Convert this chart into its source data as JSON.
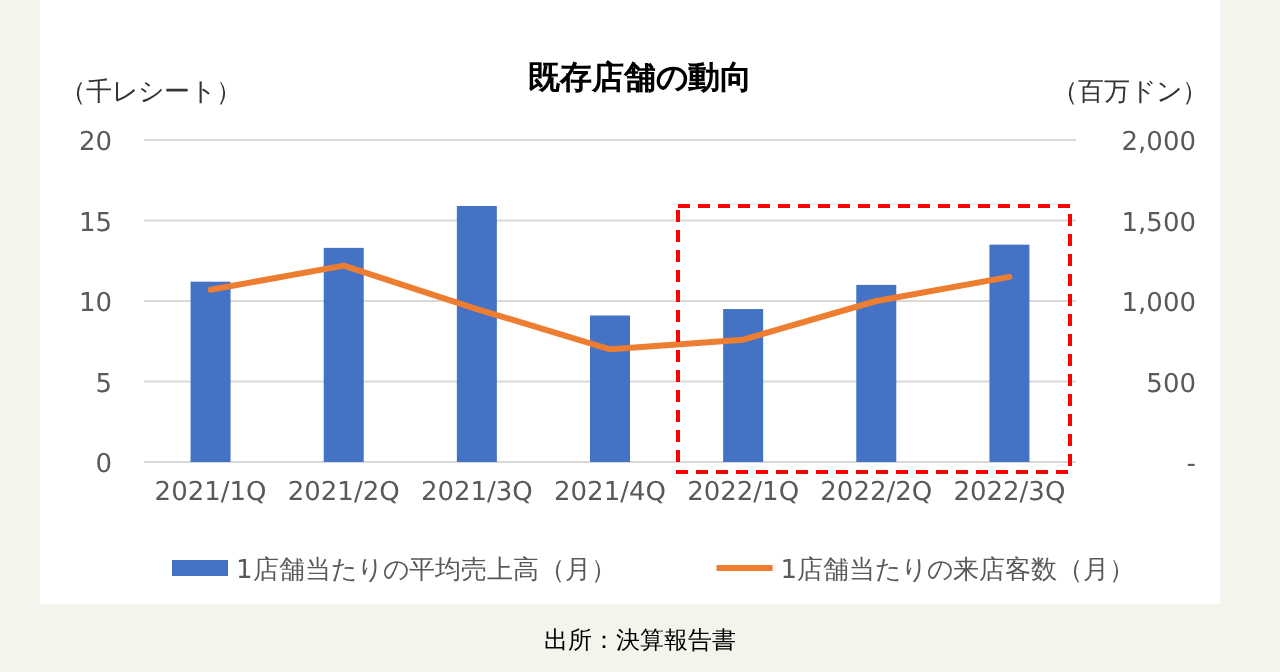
{
  "chart_data": {
    "type": "bar",
    "title": "既存店舗の動向",
    "ylabel": "（千レシート）",
    "y2label": "（百万ドン）",
    "categories": [
      "2021/1Q",
      "2021/2Q",
      "2021/3Q",
      "2021/4Q",
      "2022/1Q",
      "2022/2Q",
      "2022/3Q"
    ],
    "series": [
      {
        "name": "1店舗当たりの平均売上高（月）",
        "axis": "y2",
        "color": "#4472c4",
        "values": [
          1120,
          1330,
          1590,
          910,
          950,
          1100,
          1350
        ]
      },
      {
        "name": "1店舗当たりの来店客数（月）",
        "type": "line",
        "axis": "y",
        "color": "#ed7d31",
        "values": [
          10.7,
          12.2,
          9.5,
          7.0,
          7.6,
          10.0,
          11.5
        ]
      }
    ],
    "ylim": [
      0,
      20
    ],
    "yticks": [
      0,
      5,
      10,
      15,
      20
    ],
    "y2lim": [
      0,
      2000
    ],
    "y2ticks": [
      {
        "value": 0,
        "label": "-"
      },
      500,
      {
        "value": 1000,
        "label": "1,000"
      },
      {
        "value": 1500,
        "label": "1,500"
      },
      {
        "value": 2000,
        "label": "2,000"
      }
    ],
    "grid": "y",
    "legend": "bottom",
    "marker": "none",
    "line_style": "solid",
    "annotations": [
      "出所：決算報告書"
    ]
  }
}
